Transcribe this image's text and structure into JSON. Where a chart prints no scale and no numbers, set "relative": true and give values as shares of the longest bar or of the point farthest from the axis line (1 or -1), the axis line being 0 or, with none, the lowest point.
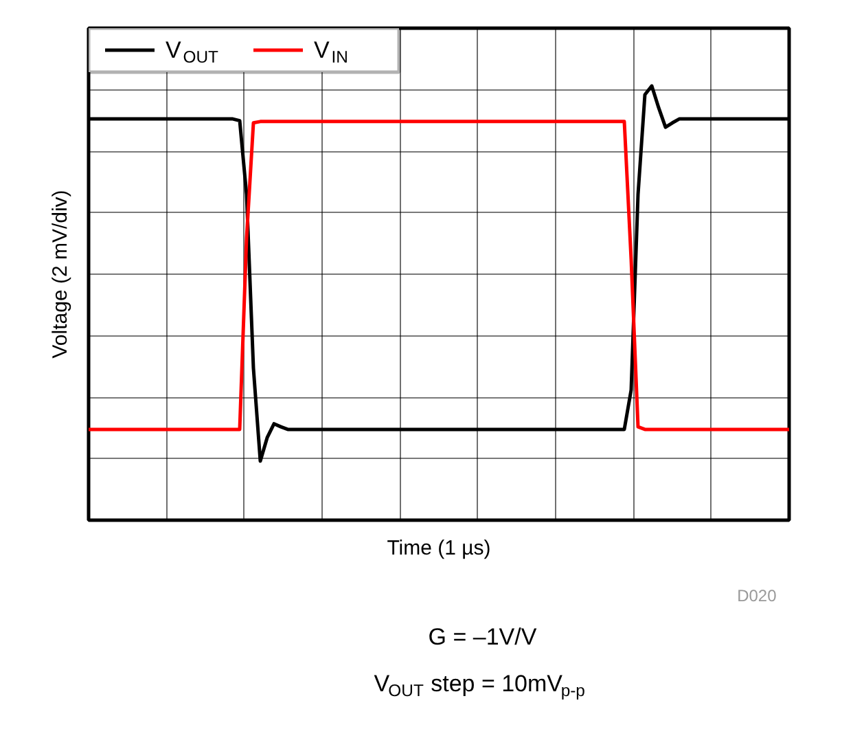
{
  "chart_data": {
    "type": "line",
    "relative": true,
    "xlabel": "Time (1 µs)",
    "ylabel": "Voltage (2 mV/div)",
    "categories": [
      null,
      null,
      null,
      null,
      null,
      null,
      null,
      null,
      null,
      null,
      null,
      null,
      null,
      null,
      null,
      null,
      null,
      null,
      null,
      null,
      null,
      null,
      null,
      null,
      null,
      null,
      null,
      null,
      null,
      null,
      null,
      null,
      null,
      null,
      null,
      null,
      null,
      null,
      null,
      null,
      null,
      null,
      null,
      null,
      null,
      null,
      null,
      null,
      null,
      null,
      null,
      null,
      null,
      null,
      null,
      null,
      null,
      null,
      null,
      null,
      null,
      null,
      null,
      null,
      null,
      null,
      null,
      null,
      null,
      null,
      null,
      null,
      null,
      null,
      null,
      null,
      null,
      null,
      null,
      null,
      null,
      null,
      null,
      null,
      null,
      null,
      null,
      null,
      null,
      null,
      null,
      null,
      null,
      null,
      null,
      null,
      null,
      null,
      null,
      null,
      null,
      null,
      null
    ],
    "series": [
      {
        "name": "V$_{OUT}$",
        "color": "#000000",
        "values": [
          0.924,
          0.924,
          0.924,
          0.924,
          0.924,
          0.924,
          0.924,
          0.924,
          0.924,
          0.924,
          0.924,
          0.924,
          0.924,
          0.924,
          0.924,
          0.924,
          0.924,
          0.924,
          0.924,
          0.924,
          0.924,
          0.924,
          0.92,
          0.75,
          0.35,
          0.136,
          0.19,
          0.222,
          0.215,
          0.209,
          0.209,
          0.209,
          0.209,
          0.209,
          0.209,
          0.209,
          0.209,
          0.209,
          0.209,
          0.209,
          0.209,
          0.209,
          0.209,
          0.209,
          0.209,
          0.209,
          0.209,
          0.209,
          0.209,
          0.209,
          0.209,
          0.209,
          0.209,
          0.209,
          0.209,
          0.209,
          0.209,
          0.209,
          0.209,
          0.209,
          0.209,
          0.209,
          0.209,
          0.209,
          0.209,
          0.209,
          0.209,
          0.209,
          0.209,
          0.209,
          0.209,
          0.209,
          0.209,
          0.209,
          0.209,
          0.209,
          0.209,
          0.209,
          0.209,
          0.3,
          0.75,
          0.98,
          1.0,
          0.95,
          0.905,
          0.915,
          0.924,
          0.924,
          0.924,
          0.924,
          0.924,
          0.924,
          0.924,
          0.924,
          0.924,
          0.924,
          0.924,
          0.924,
          0.924,
          0.924,
          0.924,
          0.924,
          0.924
        ]
      },
      {
        "name": "V$_{IN}$",
        "color": "#ff0000",
        "values": [
          0.209,
          0.209,
          0.209,
          0.209,
          0.209,
          0.209,
          0.209,
          0.209,
          0.209,
          0.209,
          0.209,
          0.209,
          0.209,
          0.209,
          0.209,
          0.209,
          0.209,
          0.209,
          0.209,
          0.209,
          0.209,
          0.209,
          0.209,
          0.65,
          0.915,
          0.918,
          0.918,
          0.918,
          0.918,
          0.918,
          0.918,
          0.918,
          0.918,
          0.918,
          0.918,
          0.918,
          0.918,
          0.918,
          0.918,
          0.918,
          0.918,
          0.918,
          0.918,
          0.918,
          0.918,
          0.918,
          0.918,
          0.918,
          0.918,
          0.918,
          0.918,
          0.918,
          0.918,
          0.918,
          0.918,
          0.918,
          0.918,
          0.918,
          0.918,
          0.918,
          0.918,
          0.918,
          0.918,
          0.918,
          0.918,
          0.918,
          0.918,
          0.918,
          0.918,
          0.918,
          0.918,
          0.918,
          0.918,
          0.918,
          0.918,
          0.918,
          0.918,
          0.918,
          0.918,
          0.6,
          0.215,
          0.209,
          0.209,
          0.209,
          0.209,
          0.209,
          0.209,
          0.209,
          0.209,
          0.209,
          0.209,
          0.209,
          0.209,
          0.209,
          0.209,
          0.209,
          0.209,
          0.209,
          0.209,
          0.209,
          0.209,
          0.209,
          0.209
        ]
      }
    ],
    "grid": true,
    "legend": "top left",
    "tick_labels": false,
    "line_style": "solid",
    "marker": "none",
    "annotations": [
      "D020",
      "G = –1V/V",
      "V$_{OUT}$ step = 10mV$_{p-p}$"
    ]
  }
}
